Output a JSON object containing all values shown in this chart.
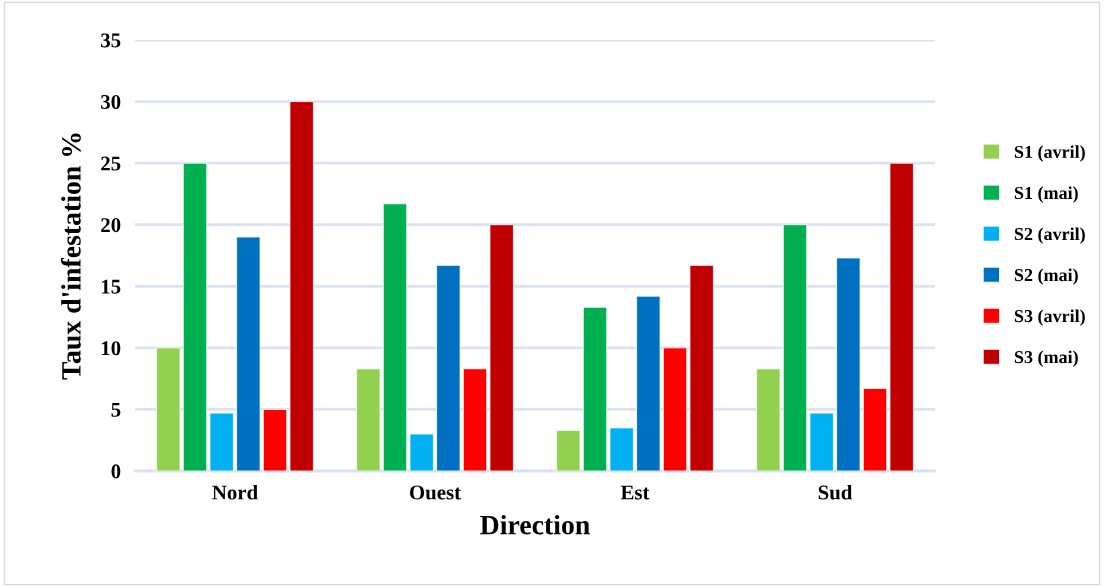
{
  "chart_data": {
    "type": "bar",
    "xlabel": "Direction",
    "ylabel": "Taux d'infestation %",
    "categories": [
      "Nord",
      "Ouest",
      "Est",
      "Sud"
    ],
    "series": [
      {
        "name": "S1 (avril)",
        "color": "#92d050",
        "values": [
          10,
          8.3,
          3.3,
          8.3
        ]
      },
      {
        "name": "S1 (mai)",
        "color": "#00b050",
        "values": [
          25,
          21.7,
          13.3,
          20
        ]
      },
      {
        "name": "S2 (avril)",
        "color": "#00b0f0",
        "values": [
          4.7,
          3.0,
          3.5,
          4.7
        ]
      },
      {
        "name": "S2 (mai)",
        "color": "#0070c0",
        "values": [
          19,
          16.7,
          14.2,
          17.3
        ]
      },
      {
        "name": "S3 (avril)",
        "color": "#ff0000",
        "values": [
          5,
          8.3,
          10,
          6.7
        ]
      },
      {
        "name": "S3 (mai)",
        "color": "#c00000",
        "values": [
          30,
          20,
          16.7,
          25
        ]
      }
    ],
    "ylim": [
      0,
      35
    ],
    "yticks": [
      0,
      5,
      10,
      15,
      20,
      25,
      30,
      35
    ],
    "grid": "y",
    "legend": "right"
  }
}
